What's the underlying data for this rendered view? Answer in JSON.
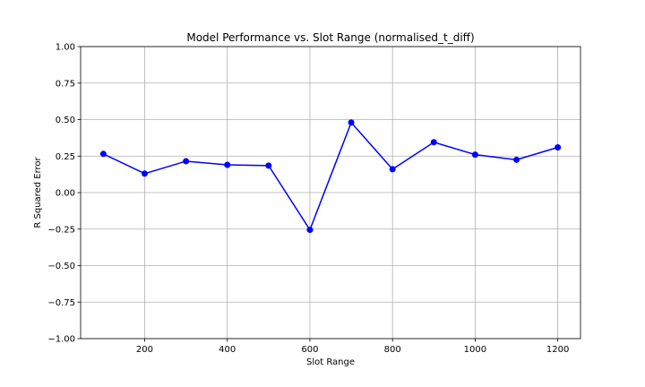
{
  "chart_data": {
    "type": "line",
    "title": "Model Performance vs. Slot Range (normalised_t_diff)",
    "xlabel": "Slot Range",
    "ylabel": "R Squared Error",
    "xlim": [
      45,
      1255
    ],
    "ylim": [
      -1.0,
      1.0
    ],
    "grid": true,
    "color": "#0000ff",
    "x_ticks": [
      200,
      400,
      600,
      800,
      1000,
      1200
    ],
    "x_tick_labels": [
      "200",
      "400",
      "600",
      "800",
      "1000",
      "1200"
    ],
    "y_ticks": [
      -1.0,
      -0.75,
      -0.5,
      -0.25,
      0.0,
      0.25,
      0.5,
      0.75,
      1.0
    ],
    "y_tick_labels": [
      "−1.00",
      "−0.75",
      "−0.50",
      "−0.25",
      "0.00",
      "0.25",
      "0.50",
      "0.75",
      "1.00"
    ],
    "series": [
      {
        "x": [
          100,
          200,
          300,
          400,
          500,
          600,
          700,
          800,
          900,
          1000,
          1100,
          1200
        ],
        "y": [
          0.265,
          0.13,
          0.215,
          0.19,
          0.185,
          -0.255,
          0.48,
          0.16,
          0.345,
          0.26,
          0.225,
          0.31
        ]
      }
    ]
  }
}
